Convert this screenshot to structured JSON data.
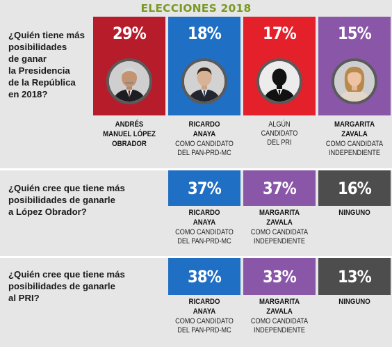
{
  "header": {
    "title": "ELECCIONES 2018"
  },
  "colors": {
    "header_text": "#7a9a24",
    "red": "#b71c2a",
    "blue": "#1f6fc5",
    "bright_red": "#e4202a",
    "purple": "#8a56a8",
    "gray": "#4d4d4d",
    "panel_bg": "#e6e6e6"
  },
  "chart_data": [
    {
      "type": "bar",
      "title": "¿Quién tiene más posibilidades de ganar la Presidencia de la República en 2018?",
      "categories": [
        "ANDRÉS MANUEL LÓPEZ OBRADOR",
        "RICARDO ANAYA",
        "ALGÚN CANDIDATO DEL PRI",
        "MARGARITA ZAVALA"
      ],
      "values": [
        29,
        18,
        17,
        15
      ],
      "labels": [
        "29%",
        "18%",
        "17%",
        "15%"
      ],
      "subtitles": [
        "",
        "COMO CANDIDATO\nDEL PAN-PRD-MC",
        "",
        "COMO CANDIDATA\nINDEPENDIENTE"
      ]
    },
    {
      "type": "bar",
      "title": "¿Quién cree que tiene más posibilidades de ganarle a López Obrador?",
      "categories": [
        "RICARDO ANAYA",
        "MARGARITA ZAVALA",
        "NINGUNO"
      ],
      "values": [
        37,
        37,
        16
      ],
      "labels": [
        "37%",
        "37%",
        "16%"
      ],
      "subtitles": [
        "COMO CANDIDATO\nDEL PAN-PRD-MC",
        "COMO CANDIDATA\nINDEPENDIENTE",
        ""
      ]
    },
    {
      "type": "bar",
      "title": "¿Quién cree que tiene más posibilidades de ganarle al PRI?",
      "categories": [
        "RICARDO ANAYA",
        "MARGARITA ZAVALA",
        "NINGUNO"
      ],
      "values": [
        38,
        33,
        13
      ],
      "labels": [
        "38%",
        "33%",
        "13%"
      ],
      "subtitles": [
        "COMO CANDIDATO\nDEL PAN-PRD-MC",
        "COMO CANDIDATA\nINDEPENDIENTE",
        ""
      ]
    }
  ],
  "sections": [
    {
      "question": "¿Quién tiene más\nposibilidades\nde ganar\nla Presidencia\nde la República\nen 2018?",
      "candidates": [
        {
          "pct": "29%",
          "name": "ANDRÉS\nMANUEL LÓPEZ\nOBRADOR",
          "sub": "",
          "color": "#b71c2a",
          "icon": "amlo-portrait-icon"
        },
        {
          "pct": "18%",
          "name": "RICARDO\nANAYA",
          "sub": "COMO CANDIDATO\nDEL PAN-PRD-MC",
          "color": "#1f6fc5",
          "icon": "anaya-portrait-icon"
        },
        {
          "pct": "17%",
          "name": "",
          "sub": "ALGÚN\nCANDIDATO\nDEL PRI",
          "color": "#e4202a",
          "icon": "generic-candidate-silhouette-icon"
        },
        {
          "pct": "15%",
          "name": "MARGARITA\nZAVALA",
          "sub": "COMO CANDIDATA\nINDEPENDIENTE",
          "color": "#8a56a8",
          "icon": "zavala-portrait-icon"
        }
      ]
    },
    {
      "question": "¿Quién cree que tiene más\nposibilidades de ganarle\na López Obrador?",
      "candidates": [
        {
          "pct": "37%",
          "name": "RICARDO\nANAYA",
          "sub": "COMO CANDIDATO\nDEL PAN-PRD-MC",
          "color": "#1f6fc5"
        },
        {
          "pct": "37%",
          "name": "MARGARITA\nZAVALA",
          "sub": "COMO CANDIDATA\nINDEPENDIENTE",
          "color": "#8a56a8"
        },
        {
          "pct": "16%",
          "name": "NINGUNO",
          "sub": "",
          "color": "#4d4d4d"
        }
      ]
    },
    {
      "question": "¿Quién cree que tiene más\nposibilidades de ganarle\nal PRI?",
      "candidates": [
        {
          "pct": "38%",
          "name": "RICARDO\nANAYA",
          "sub": "COMO CANDIDATO\nDEL PAN-PRD-MC",
          "color": "#1f6fc5"
        },
        {
          "pct": "33%",
          "name": "MARGARITA\nZAVALA",
          "sub": "COMO CANDIDATA\nINDEPENDIENTE",
          "color": "#8a56a8"
        },
        {
          "pct": "13%",
          "name": "NINGUNO",
          "sub": "",
          "color": "#4d4d4d"
        }
      ]
    }
  ]
}
